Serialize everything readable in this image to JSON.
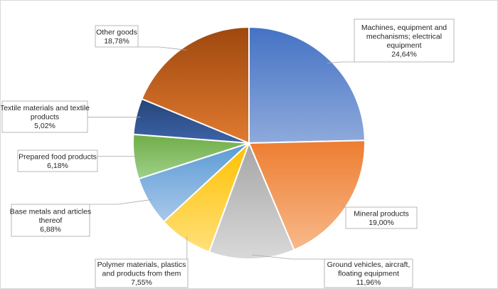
{
  "chart_data": {
    "type": "pie",
    "title": "",
    "start_angle_deg": 0,
    "direction": "clockwise",
    "legend": "none",
    "slices": [
      {
        "label_lines": [
          "Machines, equipment and",
          "mechanisms; electrical",
          "equipment"
        ],
        "value_text": "24,64%",
        "value": 24.64,
        "color_light": "#8eaadc",
        "color_dark": "#4472c4"
      },
      {
        "label_lines": [
          "Mineral products"
        ],
        "value_text": "19,00%",
        "value": 19.0,
        "color_light": "#f8b98a",
        "color_dark": "#ed7d31"
      },
      {
        "label_lines": [
          "Ground vehicles, aircraft,",
          "floating equipment"
        ],
        "value_text": "11,96%",
        "value": 11.96,
        "color_light": "#d9d9d9",
        "color_dark": "#a5a5a5"
      },
      {
        "label_lines": [
          "Polymer materials, plastics",
          "and products from them"
        ],
        "value_text": "7,55%",
        "value": 7.55,
        "color_light": "#ffe07a",
        "color_dark": "#ffc000"
      },
      {
        "label_lines": [
          "Base metals and articles",
          "thereof"
        ],
        "value_text": "6,88%",
        "value": 6.88,
        "color_light": "#a9c8ea",
        "color_dark": "#5b9bd5"
      },
      {
        "label_lines": [
          "Prepared food products"
        ],
        "value_text": "6,18%",
        "value": 6.18,
        "color_light": "#9fd08a",
        "color_dark": "#70ad47"
      },
      {
        "label_lines": [
          "Textile materials and textile",
          "products"
        ],
        "value_text": "5,02%",
        "value": 5.02,
        "color_light": "#3d64a8",
        "color_dark": "#264478"
      },
      {
        "label_lines": [
          "Other goods"
        ],
        "value_text": "18,78%",
        "value": 18.78,
        "color_light": "#e07a30",
        "color_dark": "#9e480e"
      }
    ]
  }
}
